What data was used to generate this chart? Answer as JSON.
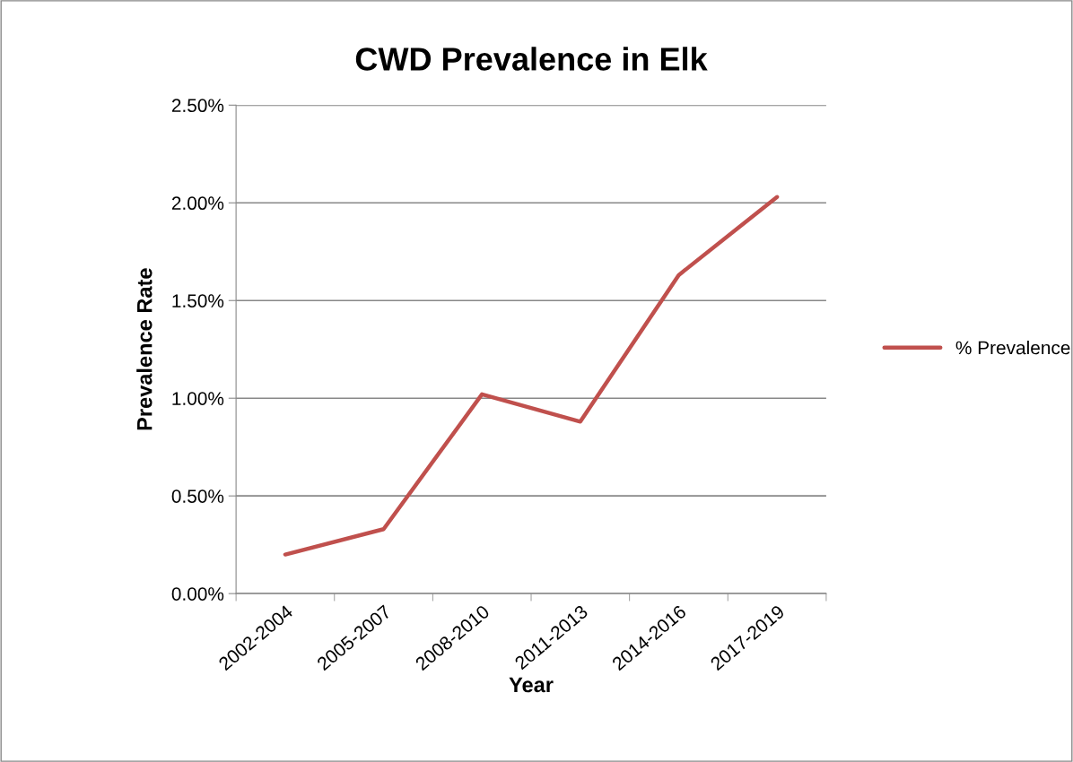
{
  "chart_data": {
    "type": "line",
    "title": "CWD Prevalence in Elk",
    "xlabel": "Year",
    "ylabel": "Prevalence Rate",
    "categories": [
      "2002-2004",
      "2005-2007",
      "2008-2010",
      "2011-2013",
      "2014-2016",
      "2017-2019"
    ],
    "series": [
      {
        "name": "% Prevalence",
        "color": "#c0504d",
        "values": [
          0.2,
          0.33,
          1.02,
          0.88,
          1.63,
          2.03
        ]
      }
    ],
    "ylim": [
      0,
      2.5
    ],
    "yticks": [
      {
        "value": 0,
        "label": "0.00%"
      },
      {
        "value": 0.5,
        "label": "0.50%"
      },
      {
        "value": 1.0,
        "label": "1.00%"
      },
      {
        "value": 1.5,
        "label": "1.50%"
      },
      {
        "value": 2.0,
        "label": "2.00%"
      },
      {
        "value": 2.5,
        "label": "2.50%"
      }
    ],
    "grid": "y",
    "legend": "right",
    "marker": "none",
    "line_style": "solid"
  }
}
